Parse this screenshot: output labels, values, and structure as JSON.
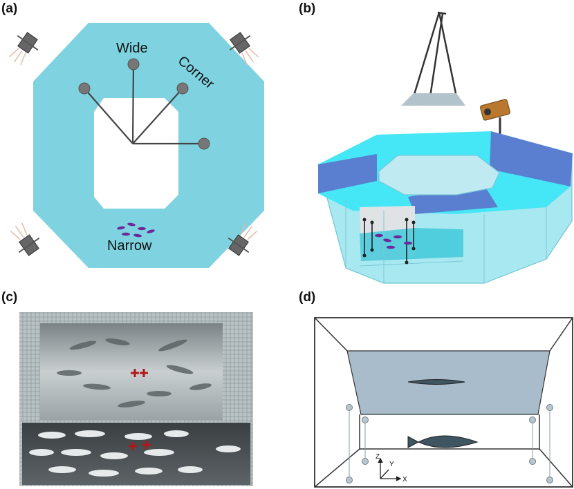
{
  "panels": {
    "a": {
      "label": "(a)",
      "wide": "Wide",
      "corner": "Corner",
      "narrow": "Narrow"
    },
    "b": {
      "label": "(b)"
    },
    "c": {
      "label": "(c)"
    },
    "d": {
      "label": "(d)",
      "axis_z": "Z",
      "axis_y": "Y",
      "axis_x": "X"
    }
  },
  "colors": {
    "tank": "#7fd3e0",
    "tank_dark": "#5a7fd0",
    "tank_bright": "#45e6f5",
    "fish_purple": "#6a2a9a",
    "marker_red": "#b0181c",
    "panel_d_fill": "#a9bccb"
  }
}
